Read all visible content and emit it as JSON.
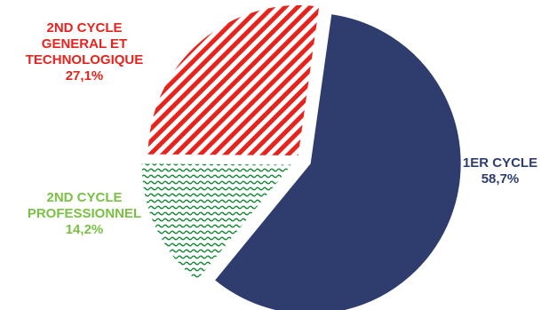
{
  "chart_data": {
    "type": "pie",
    "title": "",
    "slices": [
      {
        "label_lines": [
          "1ER CYCLE"
        ],
        "value": 58.7,
        "value_label": "58,7%",
        "color": "#2e3d6e",
        "fill": "solid"
      },
      {
        "label_lines": [
          "2ND CYCLE",
          "PROFESSIONNEL"
        ],
        "value": 14.2,
        "value_label": "14,2%",
        "color": "#7ac143",
        "fill": "wave-pattern",
        "pattern_color": "#1a8a3a"
      },
      {
        "label_lines": [
          "2ND CYCLE",
          "GENERAL ET",
          "TECHNOLOGIQUE"
        ],
        "value": 27.1,
        "value_label": "27,1%",
        "color": "#e8231d",
        "fill": "diagonal-stripes"
      }
    ],
    "start_angle_deg": 8,
    "direction": "clockwise",
    "exploded": true,
    "legend": "none",
    "data_labels": "outside"
  }
}
